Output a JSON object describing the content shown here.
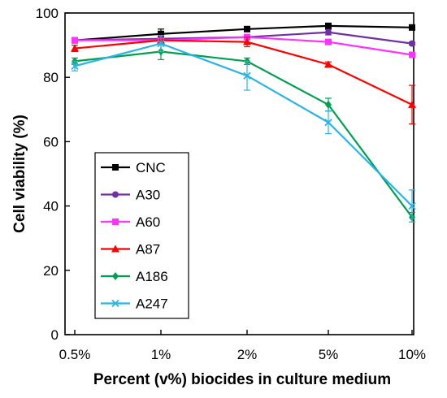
{
  "chart_data": {
    "type": "line",
    "xlabel": "Percent (v%) biocides in culture medium",
    "ylabel": "Cell viability (%)",
    "categories": [
      "0.5%",
      "1%",
      "2%",
      "5%",
      "10%"
    ],
    "ylim": [
      0,
      100
    ],
    "yticks": [
      0,
      20,
      40,
      60,
      80,
      100
    ],
    "grid": false,
    "legend_position": "bottom-left",
    "series": [
      {
        "name": "CNC",
        "color": "#000000",
        "marker": "square",
        "values": [
          91.5,
          93.5,
          95,
          96,
          95.5
        ],
        "errors": [
          0.5,
          1.5,
          0.8,
          0.8,
          0.5
        ]
      },
      {
        "name": "A30",
        "color": "#7030a0",
        "marker": "circle",
        "values": [
          91.5,
          92,
          92.5,
          94,
          90.5
        ],
        "errors": [
          0.5,
          1.0,
          0.8,
          0.8,
          0.5
        ]
      },
      {
        "name": "A60",
        "color": "#ff33ff",
        "marker": "square",
        "values": [
          91.5,
          91.5,
          92.5,
          91,
          87
        ],
        "errors": [
          0.5,
          1.0,
          0.8,
          0.8,
          0.8
        ]
      },
      {
        "name": "A87",
        "color": "#ff0000",
        "marker": "triangle",
        "values": [
          89,
          91.5,
          91,
          84,
          71.5
        ],
        "errors": [
          1.0,
          1.0,
          1.5,
          0.8,
          6.0
        ]
      },
      {
        "name": "A186",
        "color": "#00a050",
        "marker": "diamond",
        "values": [
          85,
          88,
          85,
          71.5,
          36.5
        ],
        "errors": [
          1.0,
          2.5,
          1.0,
          2.0,
          1.5
        ]
      },
      {
        "name": "A247",
        "color": "#2ab4e6",
        "marker": "cross",
        "values": [
          83.5,
          90.5,
          80.5,
          66,
          40
        ],
        "errors": [
          1.5,
          2.5,
          4.5,
          3.5,
          5.0
        ]
      }
    ]
  }
}
